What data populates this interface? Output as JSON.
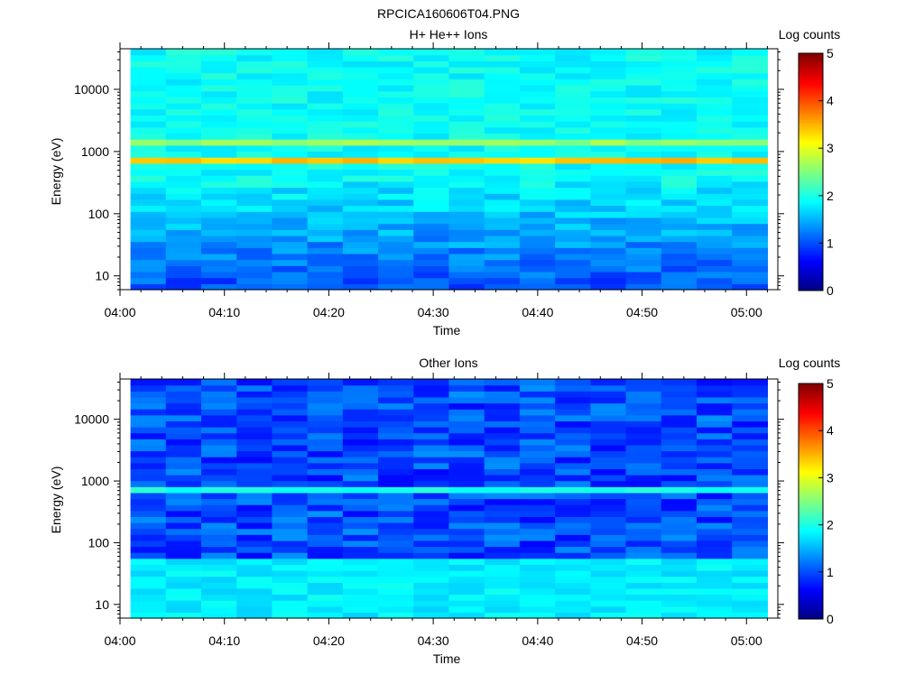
{
  "figure_title": "RPCICA160606T04.PNG",
  "chart_data": [
    {
      "type": "heatmap",
      "title": "H+ He++ Ions",
      "xlabel": "Time",
      "ylabel": "Energy (eV)",
      "y_scale": "log",
      "ylim": [
        6,
        45000
      ],
      "xlim": [
        "04:00",
        "05:03"
      ],
      "x_ticks": [
        "04:00",
        "04:10",
        "04:20",
        "04:30",
        "04:40",
        "04:50",
        "05:00"
      ],
      "y_ticks": [
        10,
        100,
        1000,
        10000
      ],
      "y_tick_labels": [
        "10",
        "100",
        "1000",
        "10000"
      ],
      "data_start": "04:01",
      "data_end": "05:02",
      "colorbar": {
        "label": "Log counts",
        "range": [
          0,
          5
        ],
        "ticks": [
          "0",
          "1",
          "2",
          "3",
          "4",
          "5"
        ]
      },
      "features": {
        "background_level": 1.9,
        "bright_band_energy_eV": 750,
        "bright_band_level": 3.4,
        "secondary_band_energy_eV": 1500,
        "secondary_band_level": 2.6,
        "low_energy_level": 1.1
      }
    },
    {
      "type": "heatmap",
      "title": "Other Ions",
      "xlabel": "Time",
      "ylabel": "Energy (eV)",
      "y_scale": "log",
      "ylim": [
        6,
        45000
      ],
      "xlim": [
        "04:00",
        "05:03"
      ],
      "x_ticks": [
        "04:00",
        "04:10",
        "04:20",
        "04:30",
        "04:40",
        "04:50",
        "05:00"
      ],
      "y_ticks": [
        10,
        100,
        1000,
        10000
      ],
      "y_tick_labels": [
        "10",
        "100",
        "1000",
        "10000"
      ],
      "data_start": "04:01",
      "data_end": "05:02",
      "colorbar": {
        "label": "Log counts",
        "range": [
          0,
          5
        ],
        "ticks": [
          "0",
          "1",
          "2",
          "3",
          "4",
          "5"
        ]
      },
      "features": {
        "background_level": 1.0,
        "band_energy_eV": 750,
        "band_level": 2.0,
        "low_energy_level": 1.8
      }
    }
  ]
}
